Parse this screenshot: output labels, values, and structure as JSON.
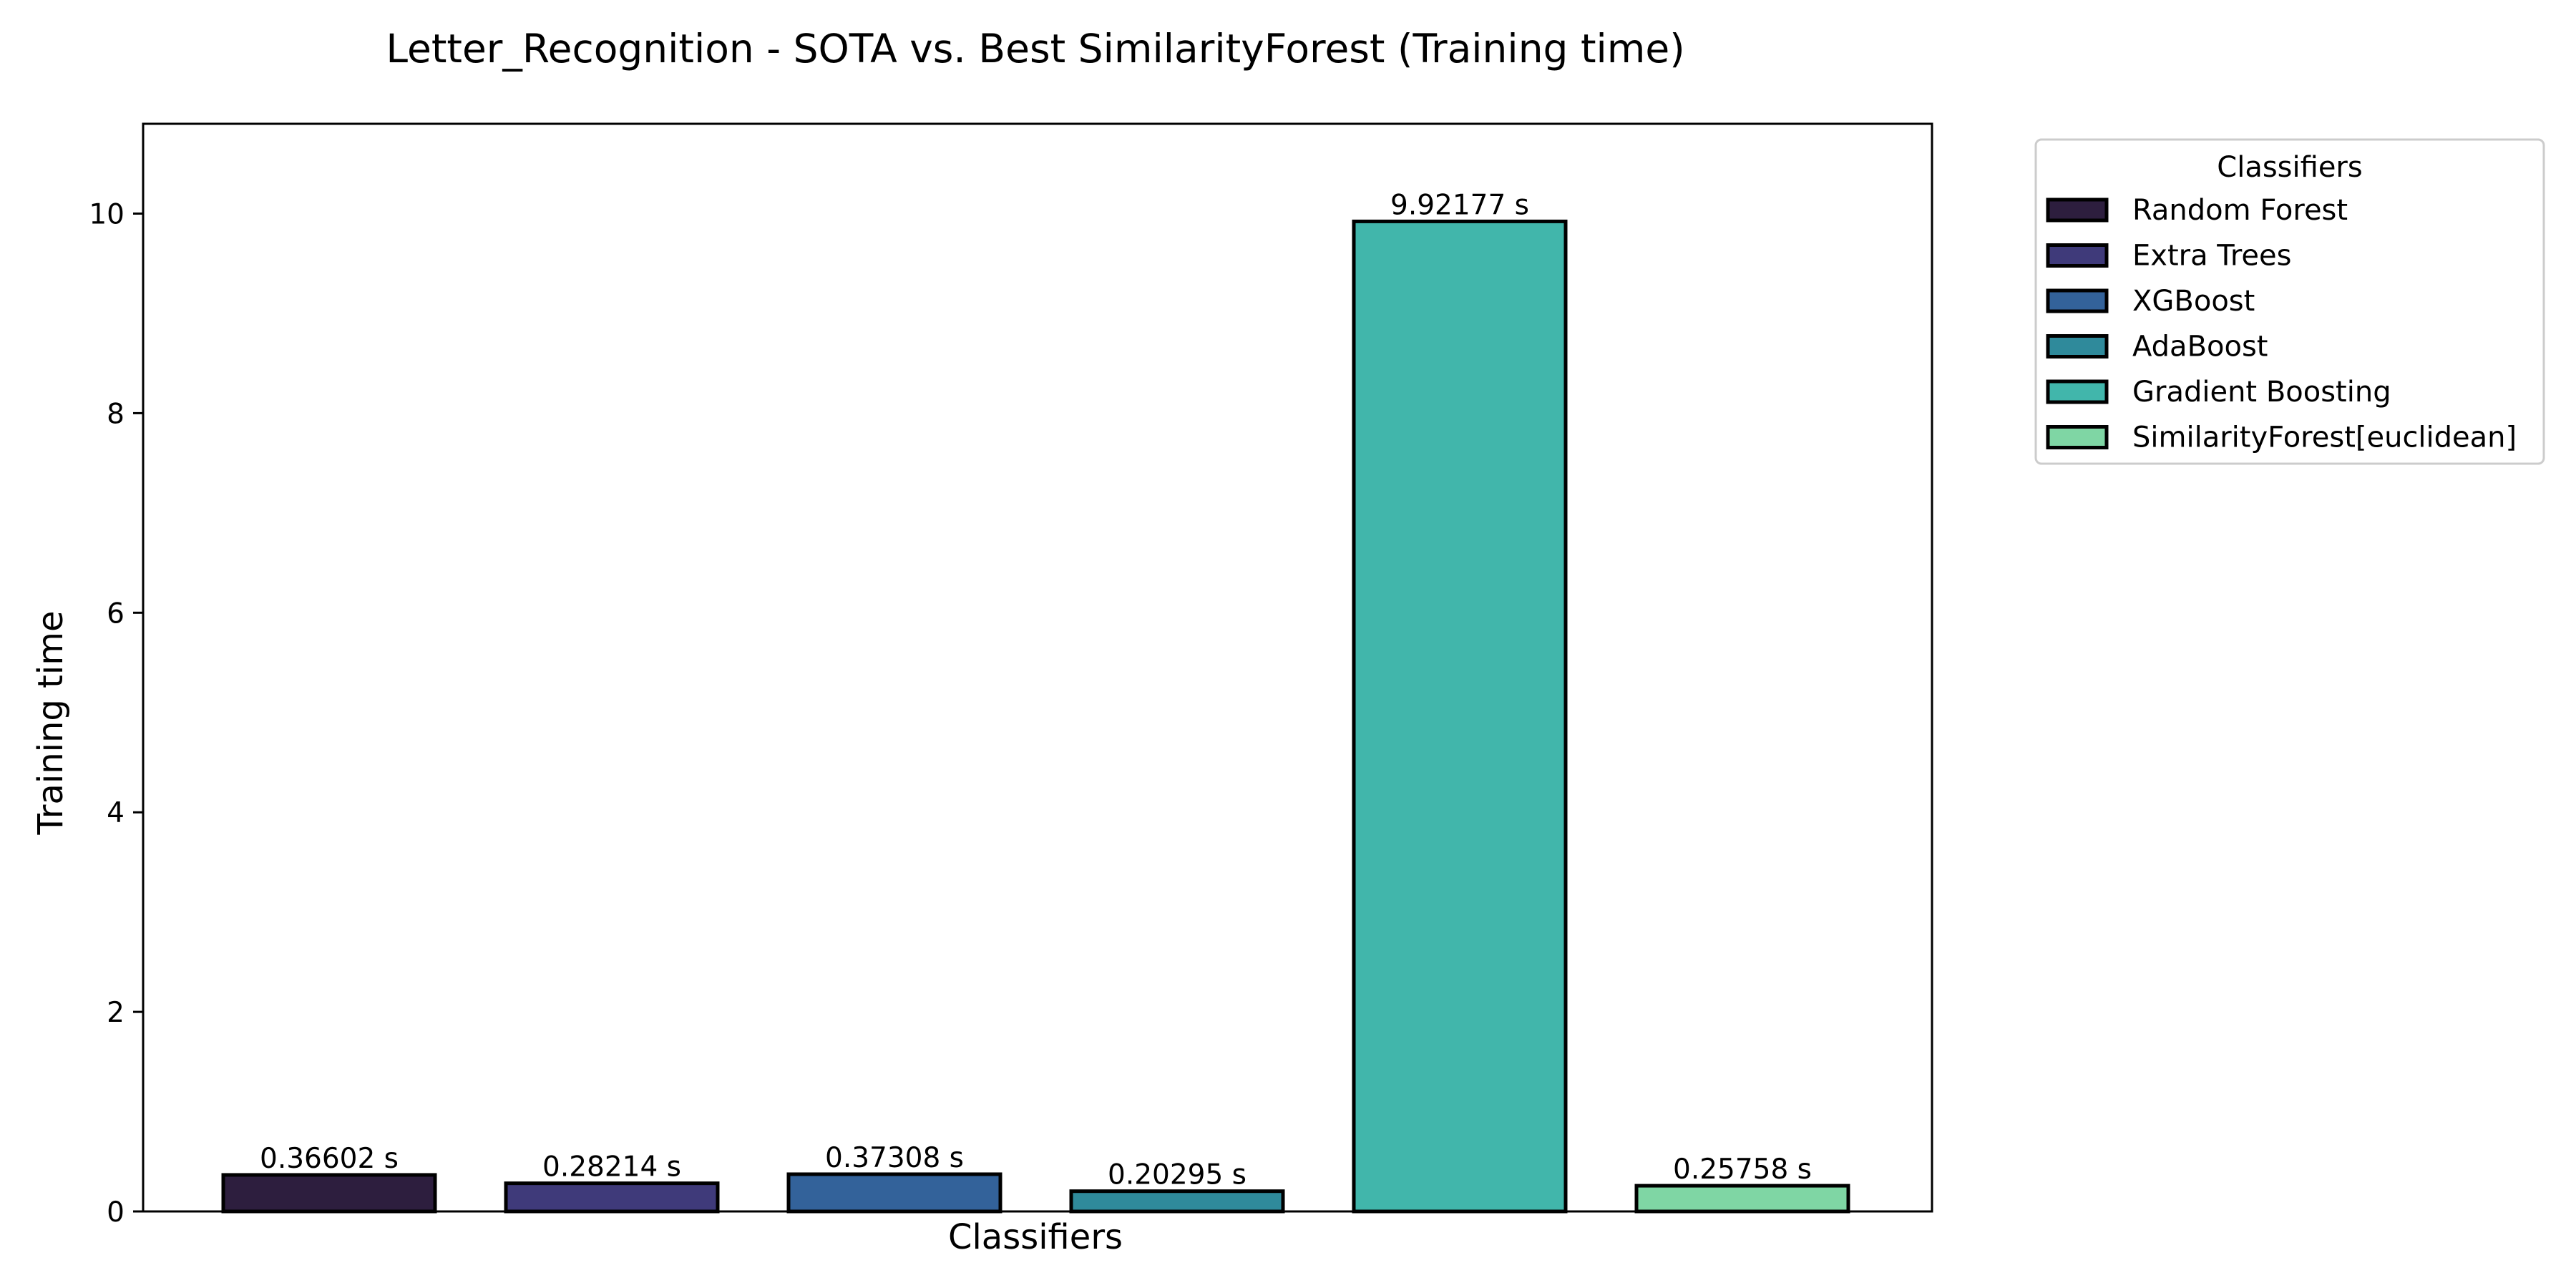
{
  "chart_data": {
    "type": "bar",
    "title": "Letter_Recognition - SOTA vs. Best SimilarityForest (Training time)",
    "xlabel": "Classifiers",
    "ylabel": "Training time",
    "categories": [
      "Random Forest",
      "Extra Trees",
      "XGBoost",
      "AdaBoost",
      "Gradient Boosting",
      "SimilarityForest[euclidean]"
    ],
    "values": [
      0.36602,
      0.28214,
      0.37308,
      0.20295,
      9.92177,
      0.25758
    ],
    "data_labels": [
      "0.36602 s",
      "0.28214 s",
      "0.37308 s",
      "0.20295 s",
      "9.92177 s",
      "0.25758 s"
    ],
    "colors": [
      "#2d1e3e",
      "#3f3a7a",
      "#33629a",
      "#2f8a9b",
      "#41b6ab",
      "#7fd6a4"
    ],
    "edge_color": "#000000",
    "ylim": [
      0,
      10.9
    ],
    "yticks": [
      0,
      2,
      4,
      6,
      8,
      10
    ],
    "ytick_labels": [
      "0",
      "2",
      "4",
      "6",
      "8",
      "10"
    ],
    "xticks_shown": false,
    "grid": false,
    "legend": {
      "title": "Classifiers",
      "placement": "outside-top-right",
      "entries": [
        "Random Forest",
        "Extra Trees",
        "XGBoost",
        "AdaBoost",
        "Gradient Boosting",
        "SimilarityForest[euclidean]"
      ]
    }
  }
}
